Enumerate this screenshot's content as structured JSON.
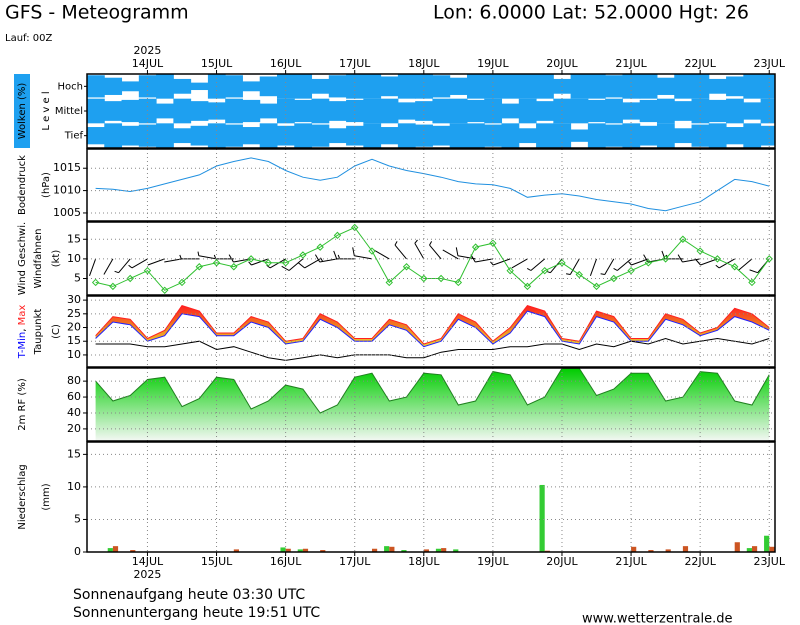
{
  "header": {
    "title": "GFS - Meteogramm",
    "location": "Lon: 6.0000 Lat: 52.0000 Hgt: 26",
    "run": "Lauf: 00Z"
  },
  "time_axis": {
    "year": "2025",
    "xlim": [
      -21,
      218
    ],
    "xticks": [
      {
        "value": 0,
        "label": "14JUL"
      },
      {
        "value": 24,
        "label": "15JUL"
      },
      {
        "value": 48,
        "label": "16JUL"
      },
      {
        "value": 72,
        "label": "17JUL"
      },
      {
        "value": 96,
        "label": "18JUL"
      },
      {
        "value": 120,
        "label": "19JUL"
      },
      {
        "value": 144,
        "label": "20JUL"
      },
      {
        "value": 168,
        "label": "21JUL"
      },
      {
        "value": 192,
        "label": "22JUL"
      },
      {
        "value": 216,
        "label": "23JUL"
      }
    ]
  },
  "chart_data": [
    {
      "type": "cloud",
      "ylabel": [
        "Wolken (%)",
        "L e v e l"
      ],
      "ylabel_colors": [
        "#ffffff",
        "#000000"
      ],
      "label_box_color": "#1ea0f0",
      "x": [
        -18,
        -12,
        -6,
        0,
        6,
        12,
        18,
        24,
        30,
        36,
        42,
        48,
        54,
        60,
        66,
        72,
        78,
        84,
        90,
        96,
        102,
        108,
        114,
        120,
        126,
        132,
        138,
        144,
        150,
        156,
        162,
        168,
        174,
        180,
        186,
        192,
        198,
        204,
        210,
        216
      ],
      "series": [
        {
          "name": "Hoch",
          "color": "#1ea0f0",
          "values": [
            90,
            70,
            40,
            90,
            100,
            60,
            30,
            100,
            90,
            40,
            80,
            100,
            100,
            60,
            90,
            100,
            100,
            80,
            100,
            100,
            90,
            70,
            100,
            100,
            100,
            100,
            100,
            60,
            100,
            100,
            90,
            100,
            100,
            70,
            100,
            100,
            60,
            80,
            100,
            100
          ]
        },
        {
          "name": "Mittel",
          "color": "#1ea0f0",
          "values": [
            100,
            80,
            90,
            100,
            60,
            100,
            80,
            70,
            100,
            90,
            60,
            100,
            90,
            100,
            80,
            90,
            100,
            100,
            70,
            80,
            100,
            100,
            90,
            100,
            60,
            100,
            80,
            100,
            100,
            90,
            100,
            70,
            90,
            100,
            80,
            100,
            90,
            100,
            70,
            100
          ]
        },
        {
          "name": "Tief",
          "color": "#1ea0f0",
          "values": [
            70,
            100,
            80,
            90,
            100,
            60,
            80,
            100,
            90,
            70,
            100,
            80,
            100,
            90,
            60,
            80,
            100,
            70,
            100,
            90,
            80,
            100,
            100,
            90,
            100,
            60,
            100,
            100,
            50,
            100,
            90,
            100,
            80,
            100,
            60,
            90,
            100,
            70,
            100,
            80
          ]
        }
      ]
    },
    {
      "type": "line",
      "ylabel": [
        "Bodendruck",
        "(hPa)"
      ],
      "ylabel_colors": [
        "#000000",
        "#000000"
      ],
      "ylim": [
        1003.2,
        1019.3
      ],
      "yticks": [
        1005,
        1010,
        1015
      ],
      "x": [
        -18,
        -12,
        -6,
        0,
        6,
        12,
        18,
        24,
        30,
        36,
        42,
        48,
        54,
        60,
        66,
        72,
        78,
        84,
        90,
        96,
        102,
        108,
        114,
        120,
        126,
        132,
        138,
        144,
        150,
        156,
        162,
        168,
        174,
        180,
        186,
        192,
        198,
        204,
        210,
        216
      ],
      "series": [
        {
          "color": "#2090e0",
          "values": [
            1010.5,
            1010.3,
            1009.8,
            1010.5,
            1011.5,
            1012.5,
            1013.5,
            1015.5,
            1016.5,
            1017.3,
            1016.5,
            1014.5,
            1013,
            1012.3,
            1013,
            1015.5,
            1017,
            1015.5,
            1014.5,
            1013.8,
            1013,
            1012,
            1011.5,
            1011.3,
            1010.5,
            1008.5,
            1009,
            1009.3,
            1008.8,
            1008,
            1007.5,
            1007,
            1006,
            1005.5,
            1006.5,
            1007.5,
            1010,
            1012.5,
            1012,
            1011
          ]
        }
      ]
    },
    {
      "type": "wind",
      "ylabel": [
        "Wind Geschwi.",
        "Windfahnen",
        "(kt)"
      ],
      "ylabel_colors": [
        "#22bb22",
        "#000000",
        "#000000"
      ],
      "ylim": [
        0.8,
        19.4
      ],
      "yticks": [
        5,
        10,
        15
      ],
      "x": [
        -18,
        -12,
        -6,
        0,
        6,
        12,
        18,
        24,
        30,
        36,
        42,
        48,
        54,
        60,
        66,
        72,
        78,
        84,
        90,
        96,
        102,
        108,
        114,
        120,
        126,
        132,
        138,
        144,
        150,
        156,
        162,
        168,
        174,
        180,
        186,
        192,
        198,
        204,
        210,
        216
      ],
      "series": [
        {
          "color": "#30c030",
          "values": [
            4,
            3,
            5,
            7,
            2,
            4,
            8,
            9,
            8,
            10,
            9,
            9,
            11,
            13,
            16,
            18,
            12,
            4,
            8,
            5,
            5,
            4,
            13,
            14,
            7,
            3,
            7,
            9,
            6,
            3,
            5,
            7,
            9,
            10,
            15,
            12,
            10,
            8,
            4,
            10
          ]
        }
      ],
      "directions": [
        200,
        210,
        220,
        240,
        250,
        260,
        270,
        280,
        270,
        260,
        250,
        240,
        230,
        240,
        260,
        270,
        280,
        300,
        320,
        330,
        320,
        300,
        280,
        260,
        250,
        240,
        230,
        220,
        210,
        200,
        210,
        230,
        250,
        260,
        270,
        260,
        250,
        240,
        230,
        220
      ],
      "barb_color": "#000000"
    },
    {
      "type": "temperature",
      "ylabel": [
        "T-Min, Max",
        "Taupunkt",
        "(C)"
      ],
      "ylabel_colors": [
        "#000000",
        "#000000",
        "#000000"
      ],
      "ylabel_parts": [
        "T-Min",
        ", ",
        "Max"
      ],
      "ylabel_part_colors": [
        "#0000ff",
        "#000000",
        "#ff2020"
      ],
      "ylim": [
        5.6,
        31.5
      ],
      "yticks": [
        10,
        15,
        20,
        25,
        30
      ],
      "fill_colors": [
        "#ff2020",
        "#f08020",
        "#f0d030"
      ],
      "x": [
        -18,
        -12,
        -6,
        0,
        6,
        12,
        18,
        24,
        30,
        36,
        42,
        48,
        54,
        60,
        66,
        72,
        78,
        84,
        90,
        96,
        102,
        108,
        114,
        120,
        126,
        132,
        138,
        144,
        150,
        156,
        162,
        168,
        174,
        180,
        186,
        192,
        198,
        204,
        210,
        216
      ],
      "series": [
        {
          "color": "#2020ff",
          "values": [
            16,
            22,
            21,
            15,
            17,
            25,
            24,
            17,
            17,
            22,
            20,
            14,
            15,
            23,
            20,
            15,
            15,
            21,
            19,
            13,
            15,
            23,
            20,
            14,
            18,
            26,
            24,
            15,
            14,
            24,
            22,
            15,
            15,
            23,
            21,
            17,
            19,
            24,
            22,
            19
          ]
        },
        {
          "color": "#ff2020",
          "values": [
            17,
            24,
            23,
            16,
            19,
            28,
            26,
            18,
            18,
            24,
            22,
            15,
            16,
            25,
            22,
            16,
            16,
            23,
            21,
            14,
            16,
            25,
            22,
            15,
            20,
            28,
            26,
            16,
            15,
            26,
            24,
            16,
            16,
            25,
            23,
            18,
            20,
            27,
            25,
            20
          ]
        },
        {
          "color": "#000000",
          "values": [
            14,
            14,
            14,
            13,
            13,
            14,
            15,
            12,
            13,
            11,
            9,
            8,
            9,
            10,
            9,
            10,
            10,
            10,
            9,
            9,
            11,
            12,
            12,
            12,
            13,
            13,
            14,
            14,
            12,
            14,
            13,
            15,
            14,
            16,
            14,
            15,
            16,
            15,
            14,
            16
          ]
        }
      ]
    },
    {
      "type": "area",
      "ylabel": [
        "2m RF (%)"
      ],
      "ylabel_colors": [
        "#22bb22"
      ],
      "ylim": [
        4.8,
        96.5
      ],
      "yticks": [
        20,
        40,
        60,
        80
      ],
      "fill_colors": [
        "#00cc00",
        "#f4f8f4"
      ],
      "x": [
        -18,
        -12,
        -6,
        0,
        6,
        12,
        18,
        24,
        30,
        36,
        42,
        48,
        54,
        60,
        66,
        72,
        78,
        84,
        90,
        96,
        102,
        108,
        114,
        120,
        126,
        132,
        138,
        144,
        150,
        156,
        162,
        168,
        174,
        180,
        186,
        192,
        198,
        204,
        210,
        216
      ],
      "series": [
        {
          "color": "#208020",
          "values": [
            80,
            55,
            62,
            82,
            85,
            48,
            58,
            85,
            82,
            45,
            55,
            75,
            70,
            40,
            50,
            85,
            90,
            55,
            60,
            90,
            88,
            50,
            55,
            92,
            88,
            50,
            60,
            96,
            96,
            62,
            70,
            90,
            90,
            55,
            60,
            92,
            90,
            55,
            50,
            88
          ]
        }
      ]
    },
    {
      "type": "bar",
      "ylabel": [
        "Niederschlag",
        "(mm)"
      ],
      "ylabel_colors": [
        "#000000",
        "#000000"
      ],
      "ylim": [
        0,
        16.9
      ],
      "yticks": [
        0,
        5,
        10,
        15
      ],
      "x": [
        -18,
        -12,
        -6,
        0,
        6,
        12,
        18,
        24,
        30,
        36,
        42,
        48,
        54,
        60,
        66,
        72,
        78,
        84,
        90,
        96,
        102,
        108,
        114,
        120,
        126,
        132,
        138,
        144,
        150,
        156,
        162,
        168,
        174,
        180,
        186,
        192,
        198,
        204,
        210,
        216
      ],
      "series": [
        {
          "color": "#33cc33",
          "values": [
            0,
            0.6,
            0,
            0,
            0,
            0,
            0,
            0,
            0,
            0,
            0,
            0.7,
            0.4,
            0,
            0,
            0,
            0,
            0.9,
            0.3,
            0,
            0.5,
            0.4,
            0,
            0,
            0,
            0,
            10.3,
            0,
            0,
            0,
            0,
            0,
            0,
            0,
            0,
            0,
            0,
            0,
            0.6,
            2.5
          ]
        },
        {
          "color": "#cc5522",
          "values": [
            0,
            0.9,
            0.3,
            0,
            0,
            0,
            0,
            0,
            0.4,
            0,
            0,
            0.5,
            0.5,
            0.3,
            0,
            0,
            0.5,
            0.8,
            0,
            0.4,
            0.6,
            0,
            0,
            0,
            0,
            0,
            0.2,
            0,
            0,
            0,
            0,
            0.8,
            0.3,
            0.4,
            0.9,
            0,
            0,
            1.5,
            0.9,
            0.8
          ]
        }
      ]
    }
  ],
  "footer": {
    "sunrise": "Sonnenaufgang heute 03:30 UTC",
    "sunset": "Sonnenuntergang heute 19:51 UTC",
    "source": "www.wetterzentrale.de"
  }
}
